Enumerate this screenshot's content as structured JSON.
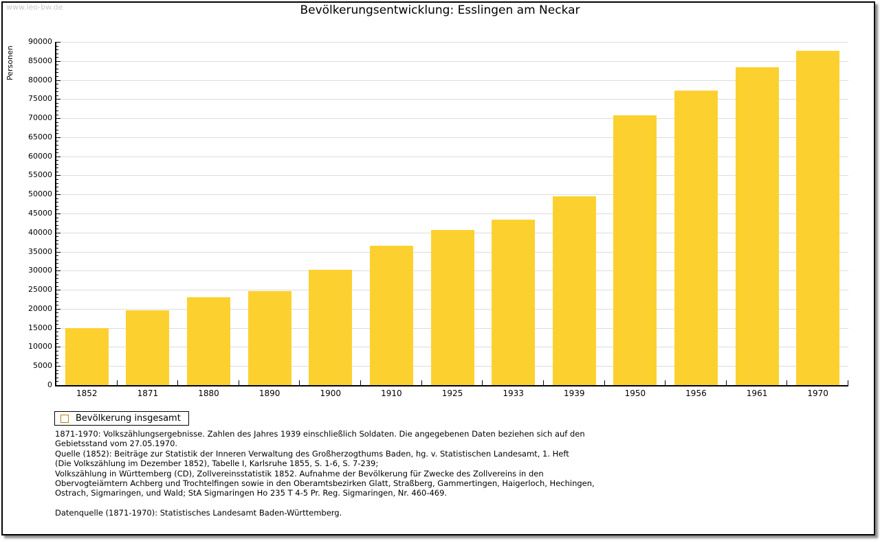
{
  "watermark": "www.leo-bw.de",
  "title": "Bevölkerungsentwicklung: Esslingen am Neckar",
  "legend": {
    "label": "Bevölkerung insgesamt"
  },
  "chart_data": {
    "type": "bar",
    "title": "Bevölkerungsentwicklung: Esslingen am Neckar",
    "xlabel": "",
    "ylabel": "Personen",
    "categories": [
      "1852",
      "1871",
      "1880",
      "1890",
      "1900",
      "1910",
      "1925",
      "1933",
      "1939",
      "1950",
      "1956",
      "1961",
      "1970"
    ],
    "values": [
      15000,
      19700,
      23000,
      24700,
      30200,
      36600,
      40700,
      43300,
      49500,
      70700,
      77200,
      83400,
      87600
    ],
    "series_name": "Bevölkerung insgesamt",
    "ylim": [
      0,
      90000
    ],
    "ytick_step": 5000,
    "y_minor_step": 1000,
    "grid": "horizontal",
    "legend_position": "below-left",
    "bar_color": "#fcd12f"
  },
  "colors": {
    "bar": "#fcd12f",
    "swatch_border": "#b8860b",
    "gridline": "#dcdcdc",
    "watermark": "#c9c9c9",
    "frame_border": "#000000"
  },
  "notes": [
    "1871-1970: Volkszählungsergebnisse. Zahlen des Jahres 1939 einschließlich Soldaten. Die angegebenen Daten beziehen sich auf den",
    "Gebietsstand vom 27.05.1970.",
    "Quelle (1852): Beiträge zur Statistik der Inneren Verwaltung des Großherzogthums Baden, hg. v. Statistischen Landesamt, 1. Heft",
    "(Die Volkszählung im Dezember 1852), Tabelle I, Karlsruhe 1855, S. 1-6, S. 7-239;",
    "Volkszählung in Württemberg (CD), Zollvereinsstatistik 1852. Aufnahme der Bevölkerung für Zwecke des Zollvereins in den",
    "Obervogteiämtern Achberg und Trochtelfingen sowie in den Oberamtsbezirken Glatt, Straßberg, Gammertingen, Haigerloch, Hechingen,",
    "Ostrach, Sigmaringen, und Wald; StA Sigmaringen Ho 235 T 4-5 Pr. Reg. Sigmaringen, Nr. 460-469.",
    "",
    "Datenquelle (1871-1970): Statistisches Landesamt Baden-Württemberg."
  ]
}
